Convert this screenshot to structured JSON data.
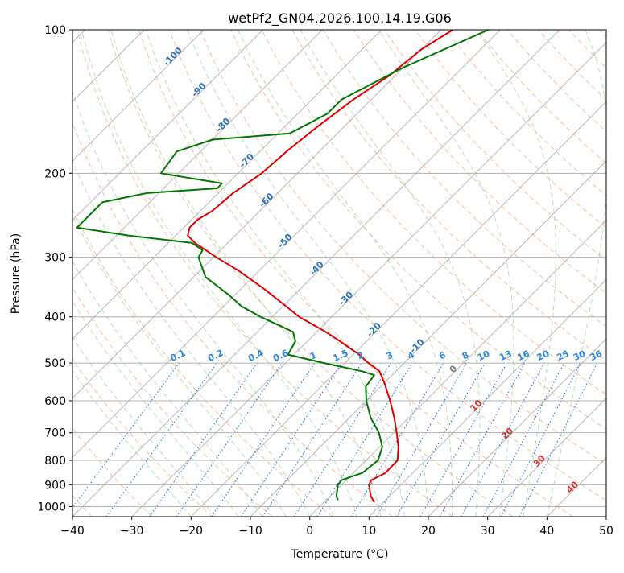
{
  "chart_data": {
    "type": "line",
    "subtype": "skew-t log-p",
    "title": "wetPf2_GN04.2026.100.14.19.G06",
    "xlabel": "Temperature (°C)",
    "ylabel": "Pressure (hPa)",
    "xlim": [
      -40,
      50
    ],
    "ylim": [
      1050,
      100
    ],
    "y_scale": "log",
    "grid": true,
    "x_ticks": [
      "−40",
      "−30",
      "−20",
      "−10",
      "0",
      "10",
      "20",
      "30",
      "40",
      "50"
    ],
    "y_ticks": [
      "100",
      "200",
      "300",
      "400",
      "500",
      "600",
      "700",
      "800",
      "900",
      "1000"
    ],
    "series": [
      {
        "color": "#dd0000",
        "points": [
          [
            100,
            -58.0
          ],
          [
            110,
            -60.0
          ],
          [
            125,
            -61.0
          ],
          [
            140,
            -63.0
          ],
          [
            160,
            -64.5
          ],
          [
            180,
            -65.5
          ],
          [
            200,
            -66.0
          ],
          [
            220,
            -67.5
          ],
          [
            240,
            -68.0
          ],
          [
            250,
            -69.0
          ],
          [
            260,
            -69.0
          ],
          [
            270,
            -68.0
          ],
          [
            280,
            -65.5
          ],
          [
            300,
            -59.5
          ],
          [
            320,
            -53.5
          ],
          [
            350,
            -46.0
          ],
          [
            380,
            -39.5
          ],
          [
            400,
            -35.5
          ],
          [
            430,
            -28.5
          ],
          [
            450,
            -24.5
          ],
          [
            480,
            -19.0
          ],
          [
            500,
            -16.0
          ],
          [
            520,
            -12.8
          ],
          [
            550,
            -10.0
          ],
          [
            600,
            -6.0
          ],
          [
            650,
            -2.5
          ],
          [
            700,
            0.5
          ],
          [
            750,
            3.2
          ],
          [
            800,
            5.3
          ],
          [
            850,
            5.4
          ],
          [
            880,
            4.2
          ],
          [
            900,
            4.6
          ],
          [
            950,
            6.8
          ],
          [
            980,
            8.5
          ]
        ]
      },
      {
        "color": "#007700",
        "points": [
          [
            100,
            -52.0
          ],
          [
            120,
            -60.0
          ],
          [
            140,
            -65.0
          ],
          [
            150,
            -65.0
          ],
          [
            165,
            -68.0
          ],
          [
            170,
            -80.0
          ],
          [
            180,
            -84.0
          ],
          [
            200,
            -83.0
          ],
          [
            210,
            -71.0
          ],
          [
            215,
            -71.0
          ],
          [
            220,
            -82.0
          ],
          [
            230,
            -88.0
          ],
          [
            240,
            -88.0
          ],
          [
            260,
            -88.0
          ],
          [
            270,
            -78.0
          ],
          [
            280,
            -66.0
          ],
          [
            290,
            -63.0
          ],
          [
            300,
            -62.5
          ],
          [
            330,
            -58.0
          ],
          [
            360,
            -51.0
          ],
          [
            380,
            -47.0
          ],
          [
            400,
            -42.0
          ],
          [
            430,
            -34.0
          ],
          [
            450,
            -32.0
          ],
          [
            480,
            -31.0
          ],
          [
            500,
            -23.5
          ],
          [
            520,
            -15.8
          ],
          [
            530,
            -13.0
          ],
          [
            560,
            -12.5
          ],
          [
            600,
            -10.0
          ],
          [
            650,
            -6.5
          ],
          [
            700,
            -2.5
          ],
          [
            750,
            0.5
          ],
          [
            800,
            2.0
          ],
          [
            850,
            1.5
          ],
          [
            880,
            -0.8
          ],
          [
            900,
            -0.6
          ],
          [
            950,
            1.0
          ],
          [
            970,
            2.0
          ]
        ]
      }
    ],
    "annotations": {
      "dry_adiabat_labels": [
        "-100",
        "-90",
        "-80",
        "-70",
        "-60",
        "-50",
        "-40",
        "-30",
        "-20",
        "-10",
        "0",
        "10",
        "20",
        "30",
        "40"
      ],
      "mixing_ratio_labels": [
        "0.1",
        "0.2",
        "0.4",
        "0.6",
        "1",
        "1.5",
        "2",
        "3",
        "4",
        "6",
        "8",
        "10",
        "13",
        "16",
        "20",
        "25",
        "30",
        "36"
      ]
    }
  }
}
